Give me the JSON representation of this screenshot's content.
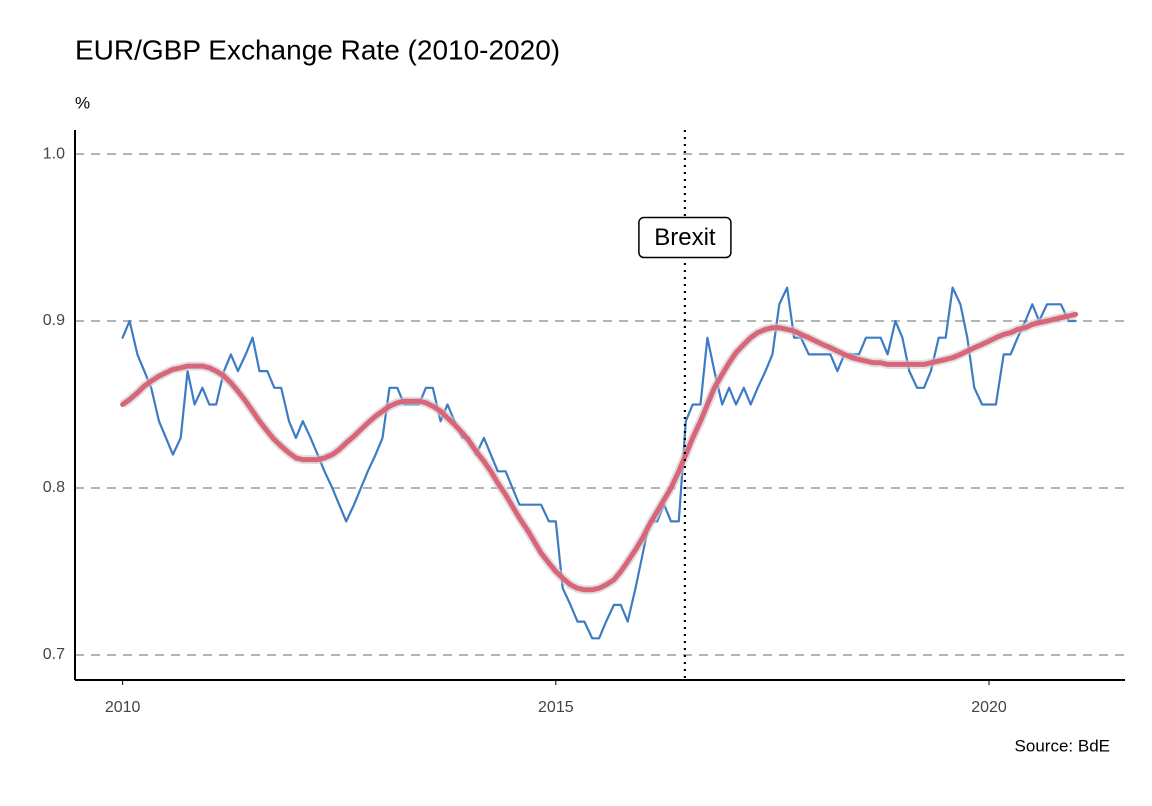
{
  "chart_data": {
    "type": "line",
    "title": "EUR/GBP Exchange Rate (2010-2020)",
    "y_axis_label": "%",
    "source": "Source: BdE",
    "x": [
      2010,
      2010.08,
      2010.17,
      2010.25,
      2010.33,
      2010.42,
      2010.5,
      2010.58,
      2010.67,
      2010.75,
      2010.83,
      2010.92,
      2011,
      2011.08,
      2011.17,
      2011.25,
      2011.33,
      2011.42,
      2011.5,
      2011.58,
      2011.67,
      2011.75,
      2011.83,
      2011.92,
      2012,
      2012.08,
      2012.17,
      2012.25,
      2012.33,
      2012.42,
      2012.5,
      2012.58,
      2012.67,
      2012.75,
      2012.83,
      2012.92,
      2013,
      2013.08,
      2013.17,
      2013.25,
      2013.33,
      2013.42,
      2013.5,
      2013.58,
      2013.67,
      2013.75,
      2013.83,
      2013.92,
      2014,
      2014.08,
      2014.17,
      2014.25,
      2014.33,
      2014.42,
      2014.5,
      2014.58,
      2014.67,
      2014.75,
      2014.83,
      2014.92,
      2015,
      2015.08,
      2015.17,
      2015.25,
      2015.33,
      2015.42,
      2015.5,
      2015.58,
      2015.67,
      2015.75,
      2015.83,
      2015.92,
      2016,
      2016.08,
      2016.17,
      2016.25,
      2016.33,
      2016.42,
      2016.5,
      2016.58,
      2016.67,
      2016.75,
      2016.83,
      2016.92,
      2017,
      2017.08,
      2017.17,
      2017.25,
      2017.33,
      2017.42,
      2017.5,
      2017.58,
      2017.67,
      2017.75,
      2017.83,
      2017.92,
      2018,
      2018.08,
      2018.17,
      2018.25,
      2018.33,
      2018.42,
      2018.5,
      2018.58,
      2018.67,
      2018.75,
      2018.83,
      2018.92,
      2019,
      2019.08,
      2019.17,
      2019.25,
      2019.33,
      2019.42,
      2019.5,
      2019.58,
      2019.67,
      2019.75,
      2019.83,
      2019.92,
      2020,
      2020.08,
      2020.17,
      2020.25,
      2020.33,
      2020.42,
      2020.5,
      2020.58,
      2020.67,
      2020.75,
      2020.83,
      2020.92,
      2021
    ],
    "series": [
      {
        "color": "#3d7cc4",
        "values": [
          0.89,
          0.9,
          0.88,
          0.87,
          0.86,
          0.84,
          0.83,
          0.82,
          0.83,
          0.87,
          0.85,
          0.86,
          0.85,
          0.85,
          0.87,
          0.88,
          0.87,
          0.88,
          0.89,
          0.87,
          0.87,
          0.86,
          0.86,
          0.84,
          0.83,
          0.84,
          0.83,
          0.82,
          0.81,
          0.8,
          0.79,
          0.78,
          0.79,
          0.8,
          0.81,
          0.82,
          0.83,
          0.86,
          0.86,
          0.85,
          0.85,
          0.85,
          0.86,
          0.86,
          0.84,
          0.85,
          0.84,
          0.83,
          0.83,
          0.82,
          0.83,
          0.82,
          0.81,
          0.81,
          0.8,
          0.79,
          0.79,
          0.79,
          0.79,
          0.78,
          0.78,
          0.74,
          0.73,
          0.72,
          0.72,
          0.71,
          0.71,
          0.72,
          0.73,
          0.73,
          0.72,
          0.74,
          0.76,
          0.78,
          0.78,
          0.79,
          0.78,
          0.78,
          0.84,
          0.85,
          0.85,
          0.89,
          0.87,
          0.85,
          0.86,
          0.85,
          0.86,
          0.85,
          0.86,
          0.87,
          0.88,
          0.91,
          0.92,
          0.89,
          0.89,
          0.88,
          0.88,
          0.88,
          0.88,
          0.87,
          0.88,
          0.88,
          0.88,
          0.89,
          0.89,
          0.89,
          0.88,
          0.9,
          0.89,
          0.87,
          0.86,
          0.86,
          0.87,
          0.89,
          0.89,
          0.92,
          0.91,
          0.89,
          0.86,
          0.85,
          0.85,
          0.85,
          0.88,
          0.88,
          0.89,
          0.9,
          0.91,
          0.9,
          0.91,
          0.91,
          0.91,
          0.9,
          0.9
        ]
      },
      {
        "color": "#d9657a",
        "values": [
          0.85,
          0.853,
          0.857,
          0.861,
          0.864,
          0.867,
          0.869,
          0.871,
          0.872,
          0.873,
          0.873,
          0.873,
          0.872,
          0.87,
          0.867,
          0.863,
          0.858,
          0.852,
          0.846,
          0.84,
          0.834,
          0.829,
          0.825,
          0.821,
          0.818,
          0.817,
          0.817,
          0.817,
          0.818,
          0.82,
          0.823,
          0.827,
          0.831,
          0.835,
          0.839,
          0.843,
          0.846,
          0.849,
          0.851,
          0.852,
          0.852,
          0.852,
          0.851,
          0.849,
          0.846,
          0.842,
          0.838,
          0.833,
          0.828,
          0.822,
          0.816,
          0.81,
          0.803,
          0.796,
          0.789,
          0.782,
          0.775,
          0.768,
          0.761,
          0.755,
          0.75,
          0.746,
          0.742,
          0.74,
          0.739,
          0.739,
          0.74,
          0.742,
          0.745,
          0.75,
          0.756,
          0.763,
          0.77,
          0.778,
          0.786,
          0.793,
          0.8,
          0.81,
          0.82,
          0.83,
          0.84,
          0.85,
          0.86,
          0.868,
          0.875,
          0.881,
          0.886,
          0.89,
          0.893,
          0.895,
          0.896,
          0.896,
          0.895,
          0.894,
          0.892,
          0.89,
          0.888,
          0.886,
          0.884,
          0.882,
          0.88,
          0.878,
          0.877,
          0.876,
          0.875,
          0.875,
          0.874,
          0.874,
          0.874,
          0.874,
          0.874,
          0.874,
          0.875,
          0.876,
          0.877,
          0.878,
          0.88,
          0.882,
          0.884,
          0.886,
          0.888,
          0.89,
          0.892,
          0.893,
          0.895,
          0.896,
          0.898,
          0.899,
          0.9,
          0.901,
          0.902,
          0.903,
          0.904
        ]
      }
    ],
    "annotation": {
      "text": "Brexit",
      "x": 2016.49,
      "y": 0.95
    },
    "xlim": [
      2009.45,
      2021.57
    ],
    "xticks": [
      2010,
      2015,
      2020
    ],
    "ylim": [
      0.685,
      1.0144
    ],
    "yticks": [
      0.7,
      0.8,
      0.9,
      {
        "value": 1,
        "label": "1.0"
      }
    ],
    "grid": true
  }
}
